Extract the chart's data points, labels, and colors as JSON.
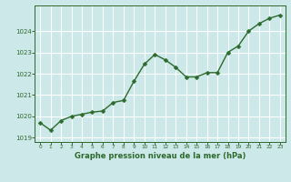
{
  "x": [
    0,
    1,
    2,
    3,
    4,
    5,
    6,
    7,
    8,
    9,
    10,
    11,
    12,
    13,
    14,
    15,
    16,
    17,
    18,
    19,
    20,
    21,
    22,
    23
  ],
  "y": [
    1019.7,
    1019.35,
    1019.8,
    1020.0,
    1020.1,
    1020.2,
    1020.25,
    1020.65,
    1020.75,
    1021.65,
    1022.45,
    1022.9,
    1022.65,
    1022.3,
    1021.85,
    1021.85,
    1022.05,
    1022.05,
    1023.0,
    1023.3,
    1024.0,
    1024.35,
    1024.6,
    1024.75
  ],
  "line_color": "#2d6a2d",
  "marker": "D",
  "markersize": 2.5,
  "linewidth": 1.0,
  "bg_color": "#cce8e8",
  "grid_color": "#ffffff",
  "xlabel": "Graphe pression niveau de la mer (hPa)",
  "xlabel_color": "#2d6a2d",
  "tick_color": "#2d6a2d",
  "axis_color": "#2d6a2d",
  "ylim": [
    1018.8,
    1025.2
  ],
  "xlim": [
    -0.5,
    23.5
  ],
  "yticks": [
    1019,
    1020,
    1021,
    1022,
    1023,
    1024
  ],
  "xticks": [
    0,
    1,
    2,
    3,
    4,
    5,
    6,
    7,
    8,
    9,
    10,
    11,
    12,
    13,
    14,
    15,
    16,
    17,
    18,
    19,
    20,
    21,
    22,
    23
  ]
}
